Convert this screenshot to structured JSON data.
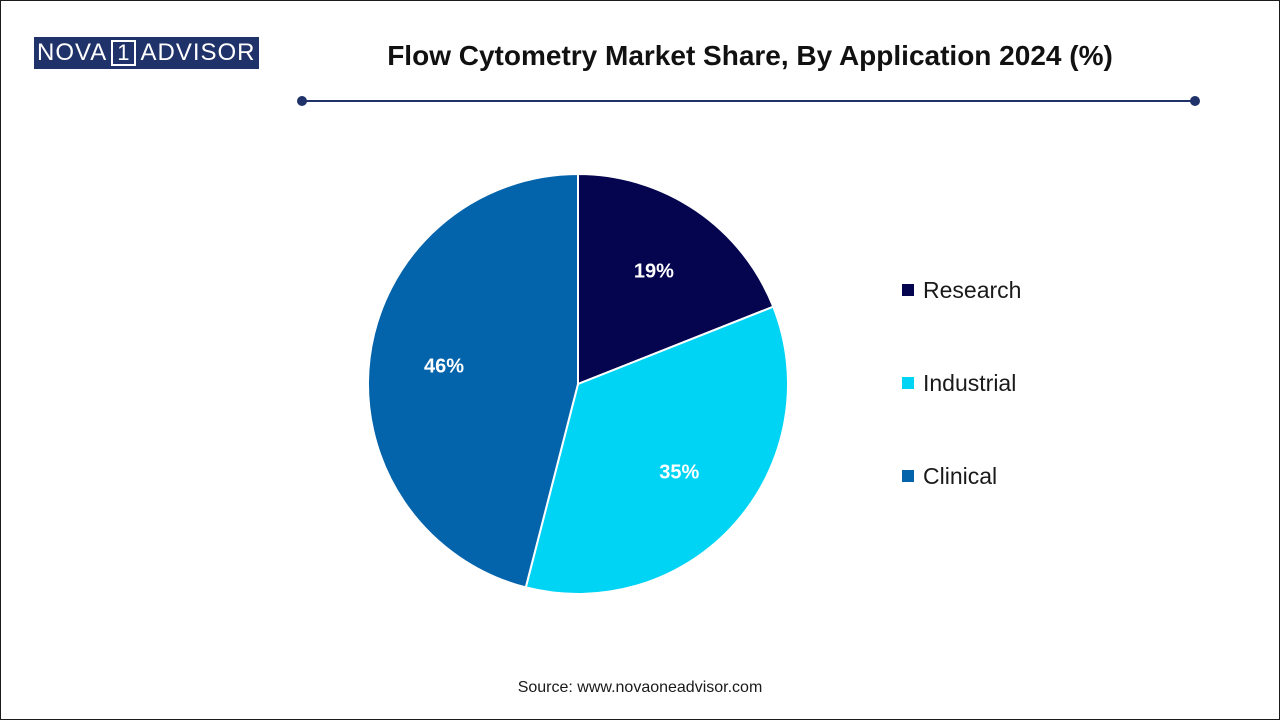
{
  "logo": {
    "left_text": "NOVA",
    "number": "1",
    "right_text": "ADVISOR"
  },
  "title": "Flow Cytometry Market Share, By Application 2024 (%)",
  "source": "Source: www.novaoneadvisor.com",
  "colors": {
    "Research": "#04044f",
    "Industrial": "#00d4f5",
    "Clinical": "#0363ab",
    "title_rule": "#1f3269"
  },
  "chart_data": {
    "type": "pie",
    "title": "Flow Cytometry Market Share, By Application 2024 (%)",
    "categories": [
      "Research",
      "Industrial",
      "Clinical"
    ],
    "values": [
      19,
      35,
      46
    ],
    "unit": "%",
    "data_labels": [
      "19%",
      "35%",
      "46%"
    ],
    "start_angle_deg": 0,
    "direction": "clockwise",
    "legend_position": "right"
  }
}
